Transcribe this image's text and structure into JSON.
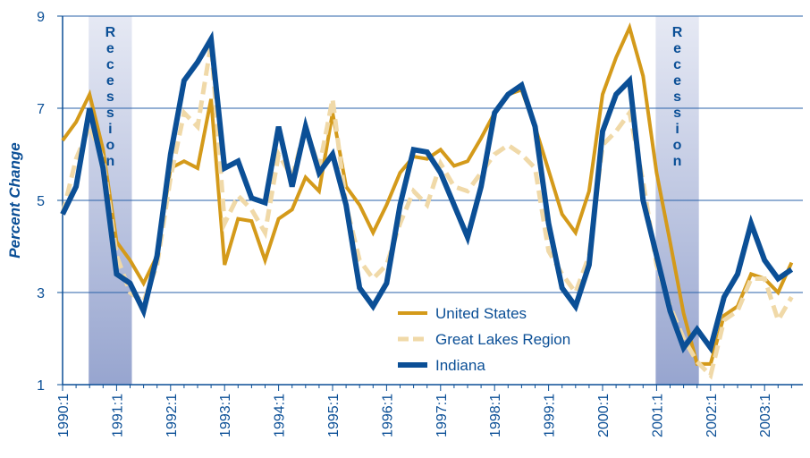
{
  "chart_data": {
    "type": "line",
    "y_label": "Percent Change",
    "categories": [
      "1990:1",
      null,
      null,
      null,
      "1991:1",
      null,
      null,
      null,
      "1992:1",
      null,
      null,
      null,
      "1993:1",
      null,
      null,
      null,
      "1994:1",
      null,
      null,
      null,
      "1995:1",
      null,
      null,
      null,
      "1996:1",
      null,
      null,
      null,
      "1997:1",
      null,
      null,
      null,
      "1998:1",
      null,
      null,
      null,
      "1999:1",
      null,
      null,
      null,
      "2000:1",
      null,
      null,
      null,
      "2001:1",
      null,
      null,
      null,
      "2002:1",
      null,
      null,
      null,
      "2003:1",
      null,
      null
    ],
    "ylim": [
      1,
      9
    ],
    "yticks": [
      1,
      3,
      5,
      7,
      9
    ],
    "grid": true,
    "recessions": [
      {
        "label": "Recession",
        "from": 2,
        "to": 5
      },
      {
        "label": "Recession",
        "from": 44,
        "to": 47
      }
    ],
    "series": [
      {
        "name": "United States",
        "color": "#d49a1a",
        "dashed": false,
        "width": 4,
        "values": [
          6.3,
          6.7,
          7.3,
          6.1,
          4.1,
          3.7,
          3.2,
          3.8,
          5.7,
          5.85,
          5.7,
          7.2,
          3.6,
          4.6,
          4.55,
          3.7,
          4.6,
          4.8,
          5.5,
          5.2,
          6.9,
          5.3,
          4.9,
          4.3,
          4.9,
          5.6,
          5.95,
          5.9,
          6.1,
          5.75,
          5.85,
          6.35,
          6.9,
          7.3,
          7.4,
          6.6,
          5.65,
          4.7,
          4.3,
          5.2,
          7.3,
          8.1,
          8.75,
          7.7,
          5.6,
          4.1,
          2.55,
          1.45,
          1.45,
          2.5,
          2.7,
          3.4,
          3.3,
          3.0,
          3.65
        ]
      },
      {
        "name": "Great Lakes Region",
        "color": "#f0d9a8",
        "dashed": true,
        "width": 5,
        "values": [
          4.7,
          5.9,
          6.6,
          5.9,
          3.8,
          3.0,
          2.8,
          3.6,
          5.5,
          6.9,
          6.6,
          8.4,
          4.5,
          5.1,
          4.8,
          4.3,
          6.0,
          5.5,
          6.6,
          5.7,
          7.2,
          4.9,
          3.7,
          3.3,
          3.6,
          4.5,
          5.2,
          4.9,
          5.8,
          5.3,
          5.2,
          5.6,
          6.0,
          6.2,
          6.0,
          5.7,
          3.9,
          3.4,
          3.0,
          3.8,
          6.2,
          6.5,
          6.9,
          5.4,
          3.6,
          2.7,
          2.0,
          1.5,
          1.2,
          2.4,
          2.6,
          3.3,
          3.3,
          2.4,
          2.9
        ]
      },
      {
        "name": "Indiana",
        "color": "#0b4f96",
        "dashed": false,
        "width": 6,
        "values": [
          4.7,
          5.3,
          7.0,
          5.7,
          3.4,
          3.2,
          2.6,
          3.8,
          6.0,
          7.6,
          8.0,
          8.5,
          5.7,
          5.85,
          5.05,
          4.95,
          6.6,
          5.3,
          6.6,
          5.6,
          6.0,
          4.9,
          3.1,
          2.7,
          3.2,
          4.9,
          6.1,
          6.05,
          5.6,
          4.9,
          4.2,
          5.3,
          6.9,
          7.3,
          7.5,
          6.6,
          4.5,
          3.1,
          2.7,
          3.6,
          6.5,
          7.3,
          7.6,
          5.0,
          3.8,
          2.6,
          1.8,
          2.2,
          1.8,
          2.9,
          3.4,
          4.5,
          3.7,
          3.3,
          3.5
        ]
      }
    ]
  }
}
